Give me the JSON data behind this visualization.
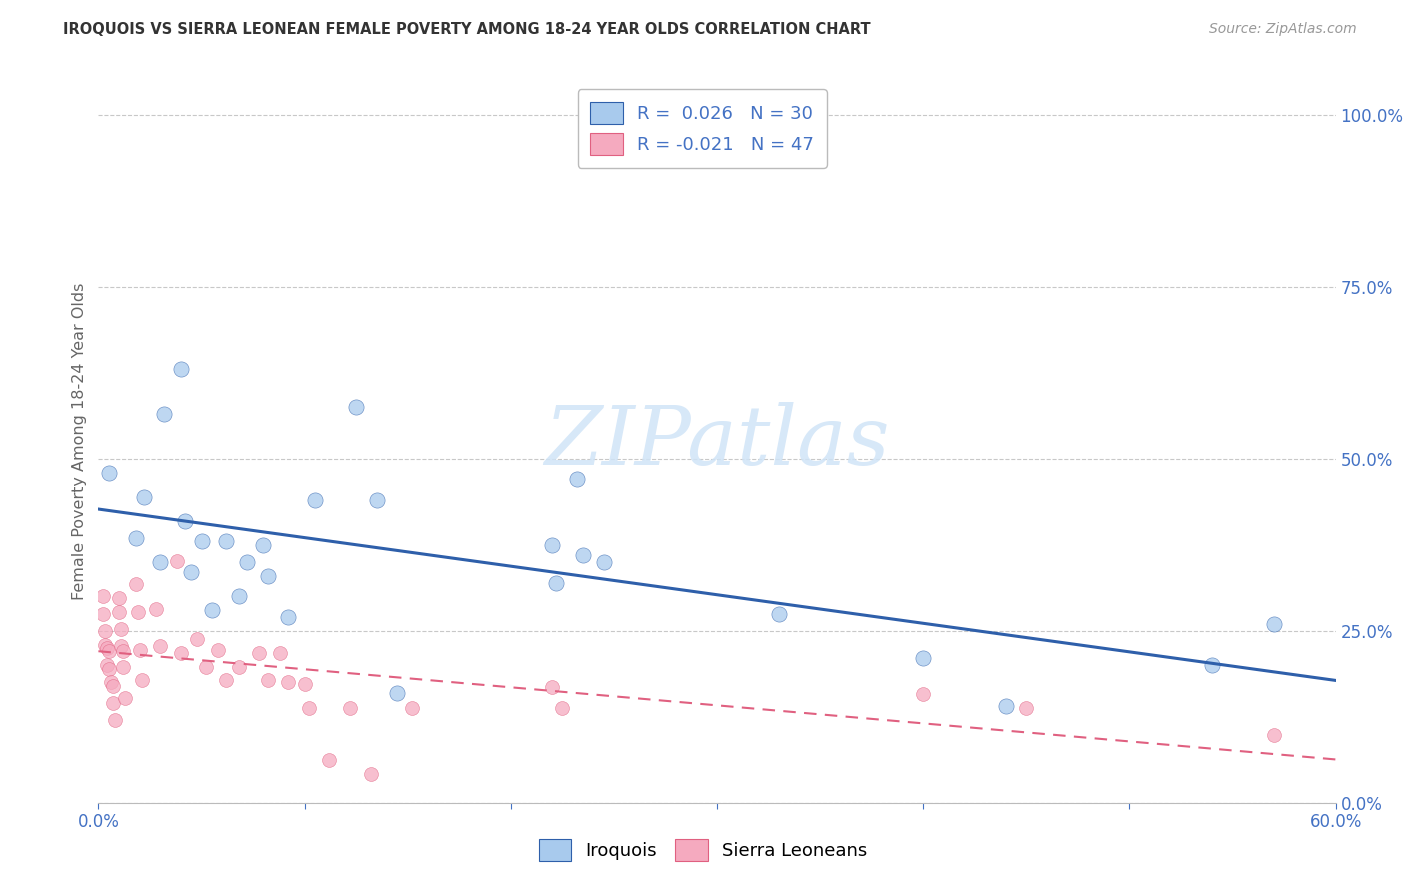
{
  "title": "IROQUOIS VS SIERRA LEONEAN FEMALE POVERTY AMONG 18-24 YEAR OLDS CORRELATION CHART",
  "source": "Source: ZipAtlas.com",
  "ylabel": "Female Poverty Among 18-24 Year Olds",
  "xmin": 0.0,
  "xmax": 0.6,
  "ymin": 0.0,
  "ymax": 1.05,
  "legend_labels": [
    "Iroquois",
    "Sierra Leoneans"
  ],
  "legend_R_blue": "0.026",
  "legend_N_blue": "30",
  "legend_R_pink": "-0.021",
  "legend_N_pink": "47",
  "iroquois_color": "#A8CAED",
  "sierra_color": "#F5AABF",
  "trendline_iroquois_color": "#2E5FAA",
  "trendline_sierra_color": "#E06080",
  "iroquois_x": [
    0.005,
    0.018,
    0.022,
    0.03,
    0.032,
    0.04,
    0.042,
    0.045,
    0.05,
    0.055,
    0.062,
    0.068,
    0.072,
    0.08,
    0.082,
    0.092,
    0.105,
    0.125,
    0.135,
    0.145,
    0.22,
    0.222,
    0.232,
    0.245,
    0.33,
    0.235,
    0.4,
    0.44,
    0.54,
    0.57
  ],
  "iroquois_y": [
    0.48,
    0.385,
    0.445,
    0.35,
    0.565,
    0.63,
    0.41,
    0.335,
    0.38,
    0.28,
    0.38,
    0.3,
    0.35,
    0.375,
    0.33,
    0.27,
    0.44,
    0.575,
    0.44,
    0.16,
    0.375,
    0.32,
    0.47,
    0.35,
    0.275,
    0.36,
    0.21,
    0.14,
    0.2,
    0.26
  ],
  "sierra_x": [
    0.002,
    0.002,
    0.003,
    0.003,
    0.004,
    0.004,
    0.005,
    0.005,
    0.006,
    0.007,
    0.007,
    0.008,
    0.01,
    0.01,
    0.011,
    0.011,
    0.012,
    0.012,
    0.013,
    0.018,
    0.019,
    0.02,
    0.021,
    0.028,
    0.03,
    0.038,
    0.04,
    0.048,
    0.052,
    0.058,
    0.062,
    0.068,
    0.078,
    0.082,
    0.088,
    0.092,
    0.1,
    0.102,
    0.112,
    0.122,
    0.132,
    0.152,
    0.22,
    0.225,
    0.4,
    0.45,
    0.57
  ],
  "sierra_y": [
    0.3,
    0.275,
    0.25,
    0.23,
    0.225,
    0.2,
    0.22,
    0.195,
    0.175,
    0.17,
    0.145,
    0.12,
    0.298,
    0.278,
    0.252,
    0.228,
    0.22,
    0.198,
    0.152,
    0.318,
    0.278,
    0.222,
    0.178,
    0.282,
    0.228,
    0.352,
    0.218,
    0.238,
    0.198,
    0.222,
    0.178,
    0.198,
    0.218,
    0.178,
    0.218,
    0.175,
    0.172,
    0.138,
    0.062,
    0.138,
    0.042,
    0.138,
    0.168,
    0.138,
    0.158,
    0.138,
    0.098
  ],
  "ytick_labels": [
    "0.0%",
    "25.0%",
    "50.0%",
    "75.0%",
    "100.0%"
  ],
  "ytick_values": [
    0.0,
    0.25,
    0.5,
    0.75,
    1.0
  ],
  "xtick_values": [
    0.0,
    0.1,
    0.2,
    0.3,
    0.4,
    0.5,
    0.6
  ],
  "xtick_labels": [
    "0.0%",
    "",
    "",
    "",
    "",
    "",
    "60.0%"
  ],
  "background_color": "#FFFFFF",
  "grid_color": "#C8C8C8",
  "title_color": "#333333",
  "axis_label_color": "#4472C4",
  "watermark_text": "ZIPatlas",
  "watermark_color": "#D0E4F7"
}
